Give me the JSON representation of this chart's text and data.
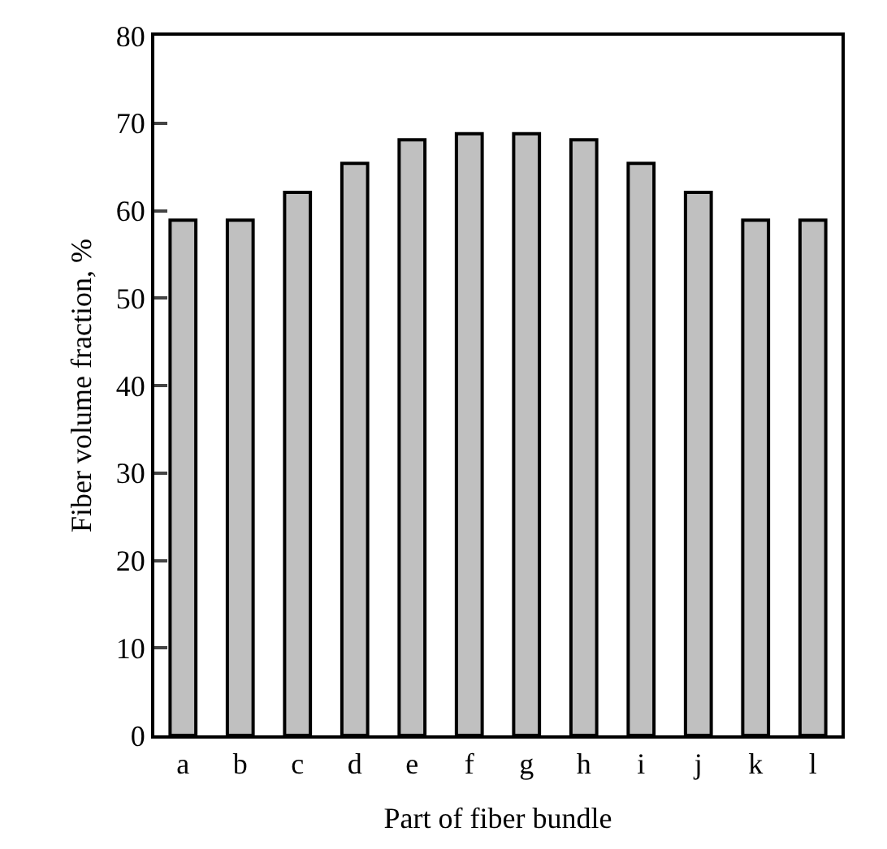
{
  "chart_data": {
    "type": "bar",
    "xlabel": "Part of fiber bundle",
    "ylabel": "Fiber volume fraction, %",
    "categories": [
      "a",
      "b",
      "c",
      "d",
      "e",
      "f",
      "g",
      "h",
      "i",
      "j",
      "k",
      "l"
    ],
    "values": [
      58.9,
      58.9,
      62.1,
      65.4,
      68.1,
      68.8,
      68.8,
      68.1,
      65.4,
      62.1,
      58.9,
      58.9
    ],
    "color": "#c0c0c0",
    "ylim": [
      0,
      80
    ],
    "yticks": [
      0,
      10,
      20,
      30,
      40,
      50,
      60,
      70,
      80
    ],
    "legend": false
  }
}
